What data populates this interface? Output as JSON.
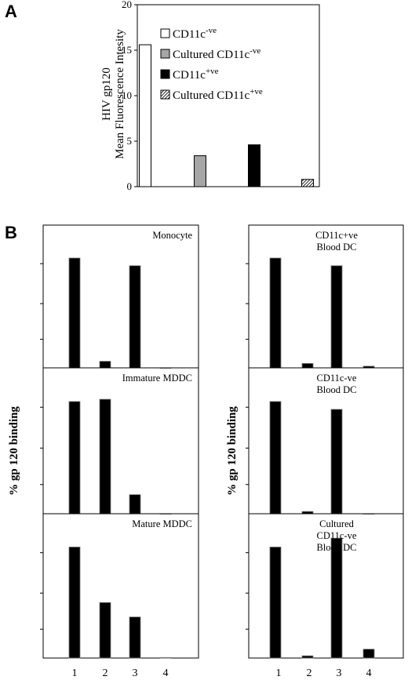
{
  "panelA": {
    "label": "A",
    "ylabel_line1": "HIV gp120",
    "ylabel_line2": "Mean Fluorescence Intesity",
    "chart_data": {
      "type": "bar",
      "categories": [
        "CD11c -ve",
        "Cultured CD11c -ve",
        "CD11c +ve",
        "Cultured CD11c +ve"
      ],
      "values": [
        15.6,
        3.4,
        4.6,
        0.8
      ],
      "ylim": [
        0,
        20
      ],
      "yticks": [
        0,
        5,
        10,
        15,
        20
      ],
      "legend": [
        {
          "base": "CD11c",
          "sup": "-ve",
          "fill": "white"
        },
        {
          "base": "Cultured CD11c",
          "sup": "-ve",
          "fill": "gray"
        },
        {
          "base": "CD11c",
          "sup": "+ve",
          "fill": "black"
        },
        {
          "base": "Cultured CD11c",
          "sup": "+ve",
          "fill": "hatch"
        }
      ],
      "legend_position": "top-right"
    }
  },
  "panelB": {
    "label": "B",
    "ylabel": "% gp 120 binding",
    "xticks": [
      "1",
      "2",
      "3",
      "4"
    ],
    "panels": [
      {
        "column": "left",
        "row": 0,
        "title_lines": [
          "Monocyte"
        ],
        "chart_data": {
          "type": "bar",
          "categories": [
            "1",
            "2",
            "3",
            "4"
          ],
          "values": [
            100,
            6,
            93,
            0
          ],
          "ylim": [
            0,
            130
          ]
        }
      },
      {
        "column": "left",
        "row": 1,
        "title_lines": [
          "Immature MDDC"
        ],
        "chart_data": {
          "type": "bar",
          "categories": [
            "1",
            "2",
            "3",
            "4"
          ],
          "values": [
            100,
            102,
            17,
            0
          ],
          "ylim": [
            0,
            130
          ]
        }
      },
      {
        "column": "left",
        "row": 2,
        "title_lines": [
          "Mature MDDC"
        ],
        "chart_data": {
          "type": "bar",
          "categories": [
            "1",
            "2",
            "3",
            "4"
          ],
          "values": [
            100,
            50,
            37,
            0.5
          ],
          "ylim": [
            0,
            130
          ]
        }
      },
      {
        "column": "right",
        "row": 0,
        "title_lines": [
          "CD11c+ve",
          "Blood DC"
        ],
        "chart_data": {
          "type": "bar",
          "categories": [
            "1",
            "2",
            "3",
            "4"
          ],
          "values": [
            100,
            4,
            93,
            1.5
          ],
          "ylim": [
            0,
            130
          ]
        }
      },
      {
        "column": "right",
        "row": 1,
        "title_lines": [
          "CD11c-ve",
          "Blood DC"
        ],
        "chart_data": {
          "type": "bar",
          "categories": [
            "1",
            "2",
            "3",
            "4"
          ],
          "values": [
            100,
            2,
            93,
            0
          ],
          "ylim": [
            0,
            130
          ]
        }
      },
      {
        "column": "right",
        "row": 2,
        "title_lines": [
          "Cultured",
          "CD11c-ve",
          "Blood DC"
        ],
        "chart_data": {
          "type": "bar",
          "categories": [
            "1",
            "2",
            "3",
            "4"
          ],
          "values": [
            100,
            2,
            108,
            8
          ],
          "ylim": [
            0,
            130
          ]
        }
      }
    ]
  }
}
